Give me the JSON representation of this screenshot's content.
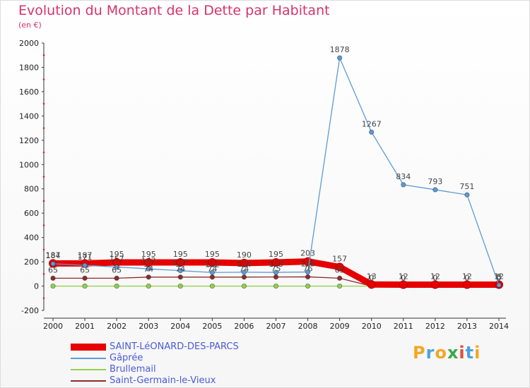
{
  "header": {
    "title": "Evolution du Montant de la Dette par Habitant",
    "unit": "(en €)"
  },
  "chart_data": {
    "type": "line",
    "x": [
      2000,
      2001,
      2002,
      2003,
      2004,
      2005,
      2006,
      2007,
      2008,
      2009,
      2010,
      2011,
      2012,
      2013,
      2014
    ],
    "ylim": [
      -200,
      2000
    ],
    "yticks": [
      -200,
      0,
      200,
      400,
      600,
      800,
      1000,
      1200,
      1400,
      1600,
      1800,
      2000
    ],
    "grid": false,
    "legend_position": "bottom",
    "series": [
      {
        "name": "SAINT-LéONARD-DES-PARCS",
        "color": "#e60000",
        "values": [
          187,
          187,
          195,
          195,
          195,
          195,
          190,
          195,
          203,
          157,
          13,
          12,
          12,
          12,
          12
        ]
      },
      {
        "name": "Gâprée",
        "color": "#5b9bd5",
        "values": [
          184,
          171,
          157,
          142,
          127,
          112,
          114,
          113,
          116,
          1878,
          1267,
          834,
          793,
          751,
          8
        ]
      },
      {
        "name": "Brullemail",
        "color": "#92d050",
        "values": [
          0,
          0,
          0,
          0,
          0,
          0,
          0,
          0,
          0,
          0,
          0,
          0,
          0,
          0,
          0
        ]
      },
      {
        "name": "Saint-Germain-le-Vieux",
        "color": "#8b2d2d",
        "values": [
          65,
          65,
          65,
          74,
          74,
          74,
          74,
          75,
          76,
          65,
          0,
          0,
          0,
          0,
          0
        ]
      }
    ],
    "data_labels": [
      {
        "series": 0,
        "values": [
          "187",
          "187",
          "195",
          "195",
          "195",
          "195",
          "190",
          "195",
          "203",
          "157",
          "13",
          "12",
          "12",
          "12",
          "12"
        ]
      },
      {
        "series": 1,
        "values": [
          "184",
          "171",
          "157",
          "142",
          "127",
          "112",
          "114",
          "113",
          "116",
          "1878",
          "1267",
          "834",
          "793",
          "751",
          "8"
        ]
      },
      {
        "series": 3,
        "values": [
          "65",
          "65",
          "65",
          "74",
          "74",
          "74",
          "74",
          "75",
          "76",
          "65",
          "0",
          "0",
          "0",
          "0",
          "0"
        ]
      }
    ]
  },
  "logo": {
    "letters": [
      "P",
      "r",
      "o",
      "x",
      "i",
      "t",
      "i"
    ],
    "colors": [
      "#f5a623",
      "#4aa3df",
      "#f5a623",
      "#3aa845",
      "#e84c3d",
      "#4aa3df",
      "#f5a623"
    ]
  }
}
